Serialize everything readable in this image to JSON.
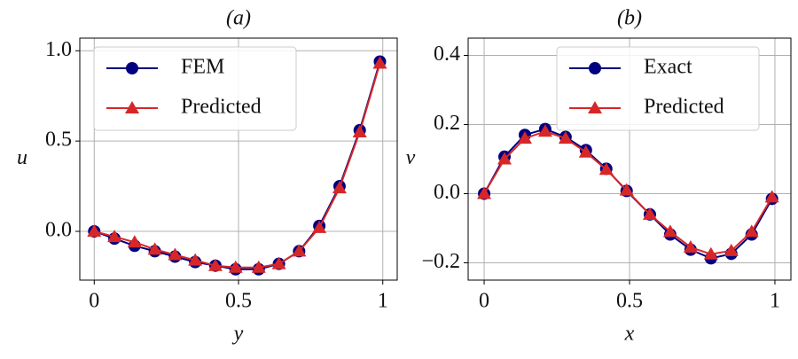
{
  "chart_data": [
    {
      "type": "line",
      "title": "(a)",
      "xlabel": "y",
      "ylabel": "u",
      "x": [
        0,
        0.07,
        0.14,
        0.21,
        0.28,
        0.35,
        0.42,
        0.49,
        0.57,
        0.64,
        0.71,
        0.78,
        0.85,
        0.92,
        0.99
      ],
      "series": [
        {
          "name": "FEM",
          "color": "#000080",
          "marker": "circle",
          "values": [
            0,
            -0.04,
            -0.08,
            -0.11,
            -0.14,
            -0.17,
            -0.19,
            -0.21,
            -0.21,
            -0.18,
            -0.11,
            0.03,
            0.25,
            0.56,
            0.94
          ]
        },
        {
          "name": "Predicted",
          "color": "#d62728",
          "marker": "triangle",
          "values": [
            0,
            -0.03,
            -0.06,
            -0.1,
            -0.13,
            -0.16,
            -0.19,
            -0.2,
            -0.2,
            -0.18,
            -0.11,
            0.02,
            0.24,
            0.55,
            0.93
          ]
        }
      ],
      "xlim": [
        -0.05,
        1.05
      ],
      "ylim": [
        -0.27,
        1.07
      ],
      "xticks": [
        0,
        0.5,
        1
      ],
      "yticks": [
        {
          "value": 0,
          "label": "0.0"
        },
        0.5,
        {
          "value": 1,
          "label": "1.0"
        }
      ],
      "grid": true,
      "legend": "upper left"
    },
    {
      "type": "line",
      "title": "(b)",
      "xlabel": "x",
      "ylabel": "v",
      "x": [
        0,
        0.07,
        0.14,
        0.21,
        0.28,
        0.35,
        0.42,
        0.49,
        0.57,
        0.64,
        0.71,
        0.78,
        0.85,
        0.92,
        0.99
      ],
      "series": [
        {
          "name": "Exact",
          "color": "#000080",
          "marker": "circle",
          "values": [
            0,
            0.107,
            0.17,
            0.187,
            0.164,
            0.126,
            0.072,
            0.008,
            -0.06,
            -0.118,
            -0.162,
            -0.187,
            -0.174,
            -0.118,
            -0.015
          ]
        },
        {
          "name": "Predicted",
          "color": "#d62728",
          "marker": "triangle",
          "values": [
            0,
            0.1,
            0.16,
            0.18,
            0.16,
            0.12,
            0.07,
            0.01,
            -0.06,
            -0.11,
            -0.155,
            -0.175,
            -0.165,
            -0.11,
            -0.01
          ]
        }
      ],
      "xlim": [
        -0.055,
        1.055
      ],
      "ylim": [
        -0.25,
        0.45
      ],
      "xticks": [
        0,
        0.5,
        1
      ],
      "yticks": [
        {
          "value": -0.2,
          "label": "−0.2"
        },
        {
          "value": 0,
          "label": "0.0"
        },
        0.2,
        0.4
      ],
      "grid": true,
      "legend": "upper right"
    }
  ]
}
